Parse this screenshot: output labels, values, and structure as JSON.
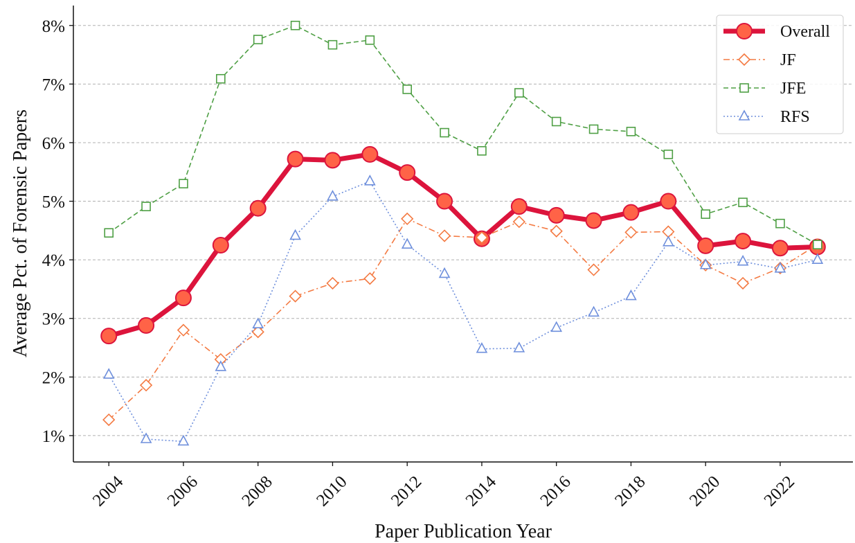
{
  "chart_data": {
    "type": "line",
    "xlabel": "Paper Publication Year",
    "ylabel": "Average Pct. of Forensic Papers",
    "x": [
      2004,
      2005,
      2006,
      2007,
      2008,
      2009,
      2010,
      2011,
      2012,
      2013,
      2014,
      2015,
      2016,
      2017,
      2018,
      2019,
      2020,
      2021,
      2022,
      2023
    ],
    "series": [
      {
        "name": "Overall",
        "color": "#dc143c",
        "marker_fill": "#ff6347",
        "marker": "circle",
        "linestyle": "solid",
        "values": [
          2.7,
          2.88,
          3.35,
          4.25,
          4.88,
          5.72,
          5.7,
          5.8,
          5.49,
          5.0,
          4.36,
          4.91,
          4.76,
          4.67,
          4.81,
          5.0,
          4.24,
          4.32,
          4.2,
          4.22
        ]
      },
      {
        "name": "JF",
        "color": "#f47a42",
        "marker": "diamond",
        "linestyle": "dashdot",
        "values": [
          1.27,
          1.86,
          2.8,
          2.3,
          2.77,
          3.38,
          3.6,
          3.68,
          4.7,
          4.41,
          4.38,
          4.65,
          4.49,
          3.83,
          4.47,
          4.48,
          3.91,
          3.6,
          3.86,
          4.26
        ]
      },
      {
        "name": "JFE",
        "color": "#4e9f44",
        "marker": "square",
        "linestyle": "dashed",
        "values": [
          4.46,
          4.91,
          5.3,
          7.09,
          7.76,
          8.0,
          7.67,
          7.75,
          6.91,
          6.17,
          5.86,
          6.85,
          6.36,
          6.23,
          6.19,
          5.8,
          4.78,
          4.98,
          4.62,
          4.26
        ]
      },
      {
        "name": "RFS",
        "color": "#6e8fdc",
        "marker": "triangle",
        "linestyle": "dotted",
        "values": [
          2.04,
          0.94,
          0.9,
          2.17,
          2.9,
          4.41,
          5.08,
          5.34,
          4.26,
          3.76,
          2.48,
          2.49,
          2.84,
          3.1,
          3.38,
          4.3,
          3.91,
          3.97,
          3.85,
          4.0
        ]
      }
    ],
    "xlim": [
      2003.05,
      2023.95
    ],
    "xticks": [
      2004,
      2006,
      2008,
      2010,
      2012,
      2014,
      2016,
      2018,
      2020,
      2022
    ],
    "ylim": [
      0.55,
      8.34
    ],
    "yticks": [
      {
        "value": 1,
        "label": "1%"
      },
      {
        "value": 2,
        "label": "2%"
      },
      {
        "value": 3,
        "label": "3%"
      },
      {
        "value": 4,
        "label": "4%"
      },
      {
        "value": 5,
        "label": "5%"
      },
      {
        "value": 6,
        "label": "6%"
      },
      {
        "value": 7,
        "label": "7%"
      },
      {
        "value": 8,
        "label": "8%"
      }
    ],
    "grid": "y",
    "legend": "upper right"
  }
}
